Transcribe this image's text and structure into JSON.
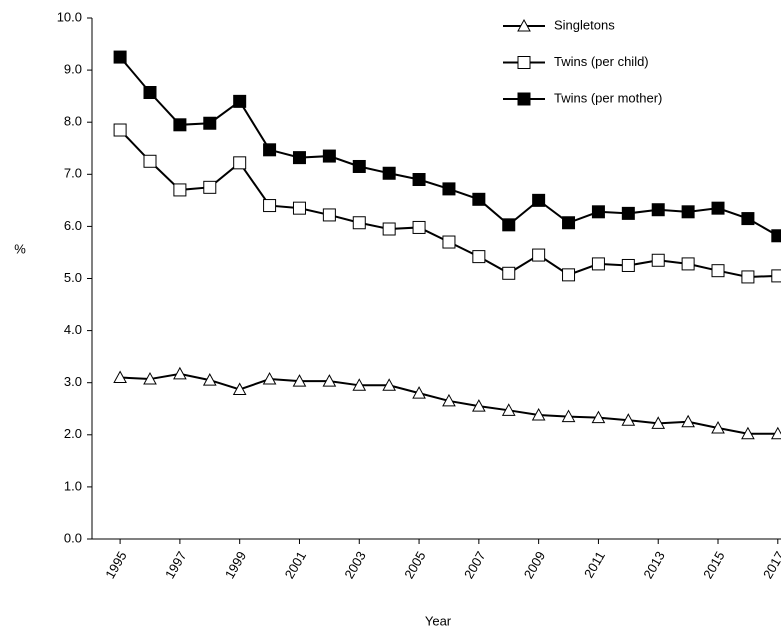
{
  "chart_data": {
    "type": "line",
    "x": [
      1995,
      1996,
      1997,
      1998,
      1999,
      2000,
      2001,
      2002,
      2003,
      2004,
      2005,
      2006,
      2007,
      2008,
      2009,
      2010,
      2011,
      2012,
      2013,
      2014,
      2015,
      2016,
      2017
    ],
    "series": [
      {
        "name": "Singletons",
        "color": "#000000",
        "marker": "triangle-open",
        "values": [
          3.1,
          3.07,
          3.17,
          3.05,
          2.87,
          3.07,
          3.03,
          3.03,
          2.95,
          2.95,
          2.8,
          2.65,
          2.55,
          2.47,
          2.38,
          2.35,
          2.33,
          2.28,
          2.22,
          2.25,
          2.13,
          2.02,
          2.02
        ]
      },
      {
        "name": "Twins (per child)",
        "color": "#000000",
        "marker": "square-open",
        "values": [
          7.85,
          7.25,
          6.7,
          6.75,
          7.22,
          6.4,
          6.35,
          6.22,
          6.07,
          5.95,
          5.98,
          5.7,
          5.42,
          5.1,
          5.45,
          5.07,
          5.28,
          5.25,
          5.35,
          5.28,
          5.15,
          5.03,
          5.05
        ]
      },
      {
        "name": "Twins (per mother)",
        "color": "#000000",
        "marker": "square-filled",
        "values": [
          9.25,
          8.57,
          7.95,
          7.98,
          8.4,
          7.47,
          7.32,
          7.35,
          7.15,
          7.02,
          6.9,
          6.72,
          6.52,
          6.03,
          6.5,
          6.07,
          6.28,
          6.25,
          6.32,
          6.28,
          6.35,
          6.15,
          5.82
        ]
      }
    ],
    "xlabel": "Year",
    "ylabel": "%",
    "xlim": [
      1994.06,
      2018
    ],
    "xticks": [
      1995,
      1997,
      1999,
      2001,
      2003,
      2005,
      2007,
      2009,
      2011,
      2013,
      2015,
      2017
    ],
    "ylim": [
      0,
      10
    ],
    "yticks": [
      {
        "value": 0,
        "label": "0.0"
      },
      {
        "value": 1,
        "label": "1.0"
      },
      {
        "value": 2,
        "label": "2.0"
      },
      {
        "value": 3,
        "label": "3.0"
      },
      {
        "value": 4,
        "label": "4.0"
      },
      {
        "value": 5,
        "label": "5.0"
      },
      {
        "value": 6,
        "label": "6.0"
      },
      {
        "value": 7,
        "label": "7.0"
      },
      {
        "value": 8,
        "label": "8.0"
      },
      {
        "value": 9,
        "label": "9.0"
      },
      {
        "value": 10,
        "label": "10.0"
      }
    ],
    "grid": false,
    "legend": "top-right"
  }
}
